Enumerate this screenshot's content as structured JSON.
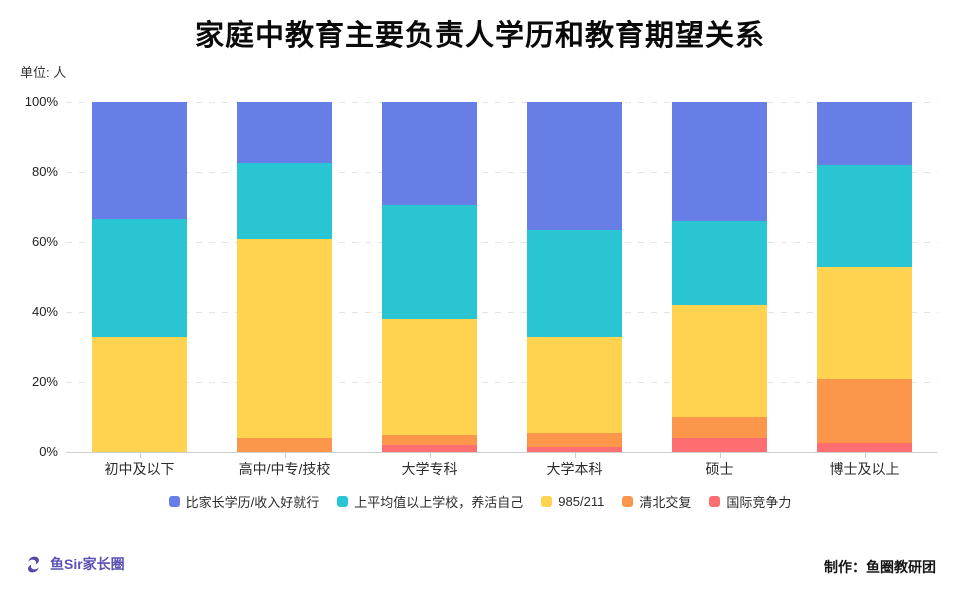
{
  "title": "家庭中教育主要负责人学历和教育期望关系",
  "unit_label": "单位: 人",
  "footer": {
    "brand": "鱼Sir家长圈",
    "credit": "制作：鱼圈教研团"
  },
  "colors": {
    "blue": "#667ee6",
    "teal": "#29c5d2",
    "yellow": "#ffd250",
    "orange": "#fb964b",
    "red": "#fc6e70",
    "brand": "#5b51b4",
    "grid": "#e3e3ee",
    "axis": "#cfcfd8"
  },
  "chart_data": {
    "type": "bar",
    "stacked": true,
    "percent": true,
    "title": "家庭中教育主要负责人学历和教育期望关系",
    "xlabel": "",
    "ylabel": "单位: 人",
    "ylim": [
      0,
      100
    ],
    "grid": "dashed-horizontal",
    "legend_position": "bottom",
    "y_tick_labels": [
      "100%",
      "80%",
      "60%",
      "40%",
      "20%",
      "0%"
    ],
    "categories": [
      "初中及以下",
      "高中/中专/技校",
      "大学专科",
      "大学本科",
      "硕士",
      "博士及以上"
    ],
    "series": [
      {
        "name": "国际竞争力",
        "color_key": "red",
        "values": [
          0,
          0,
          2,
          1.5,
          4,
          2.5
        ]
      },
      {
        "name": "清北交复",
        "color_key": "orange",
        "values": [
          0,
          4,
          3,
          4,
          6,
          18.5
        ]
      },
      {
        "name": "985/211",
        "color_key": "yellow",
        "values": [
          33,
          57,
          33,
          27.5,
          32,
          32
        ]
      },
      {
        "name": "上平均值以上学校，养活自己",
        "color_key": "teal",
        "values": [
          33.5,
          21.5,
          32.5,
          30.5,
          24,
          29
        ]
      },
      {
        "name": "比家长学历/收入好就行",
        "color_key": "blue",
        "values": [
          33.5,
          17.5,
          29.5,
          36.5,
          34,
          18
        ]
      }
    ],
    "legend": [
      {
        "label": "比家长学历/收入好就行",
        "color_key": "blue"
      },
      {
        "label": "上平均值以上学校，养活自己",
        "color_key": "teal"
      },
      {
        "label": "985/211",
        "color_key": "yellow"
      },
      {
        "label": "清北交复",
        "color_key": "orange"
      },
      {
        "label": "国际竞争力",
        "color_key": "red"
      }
    ]
  }
}
